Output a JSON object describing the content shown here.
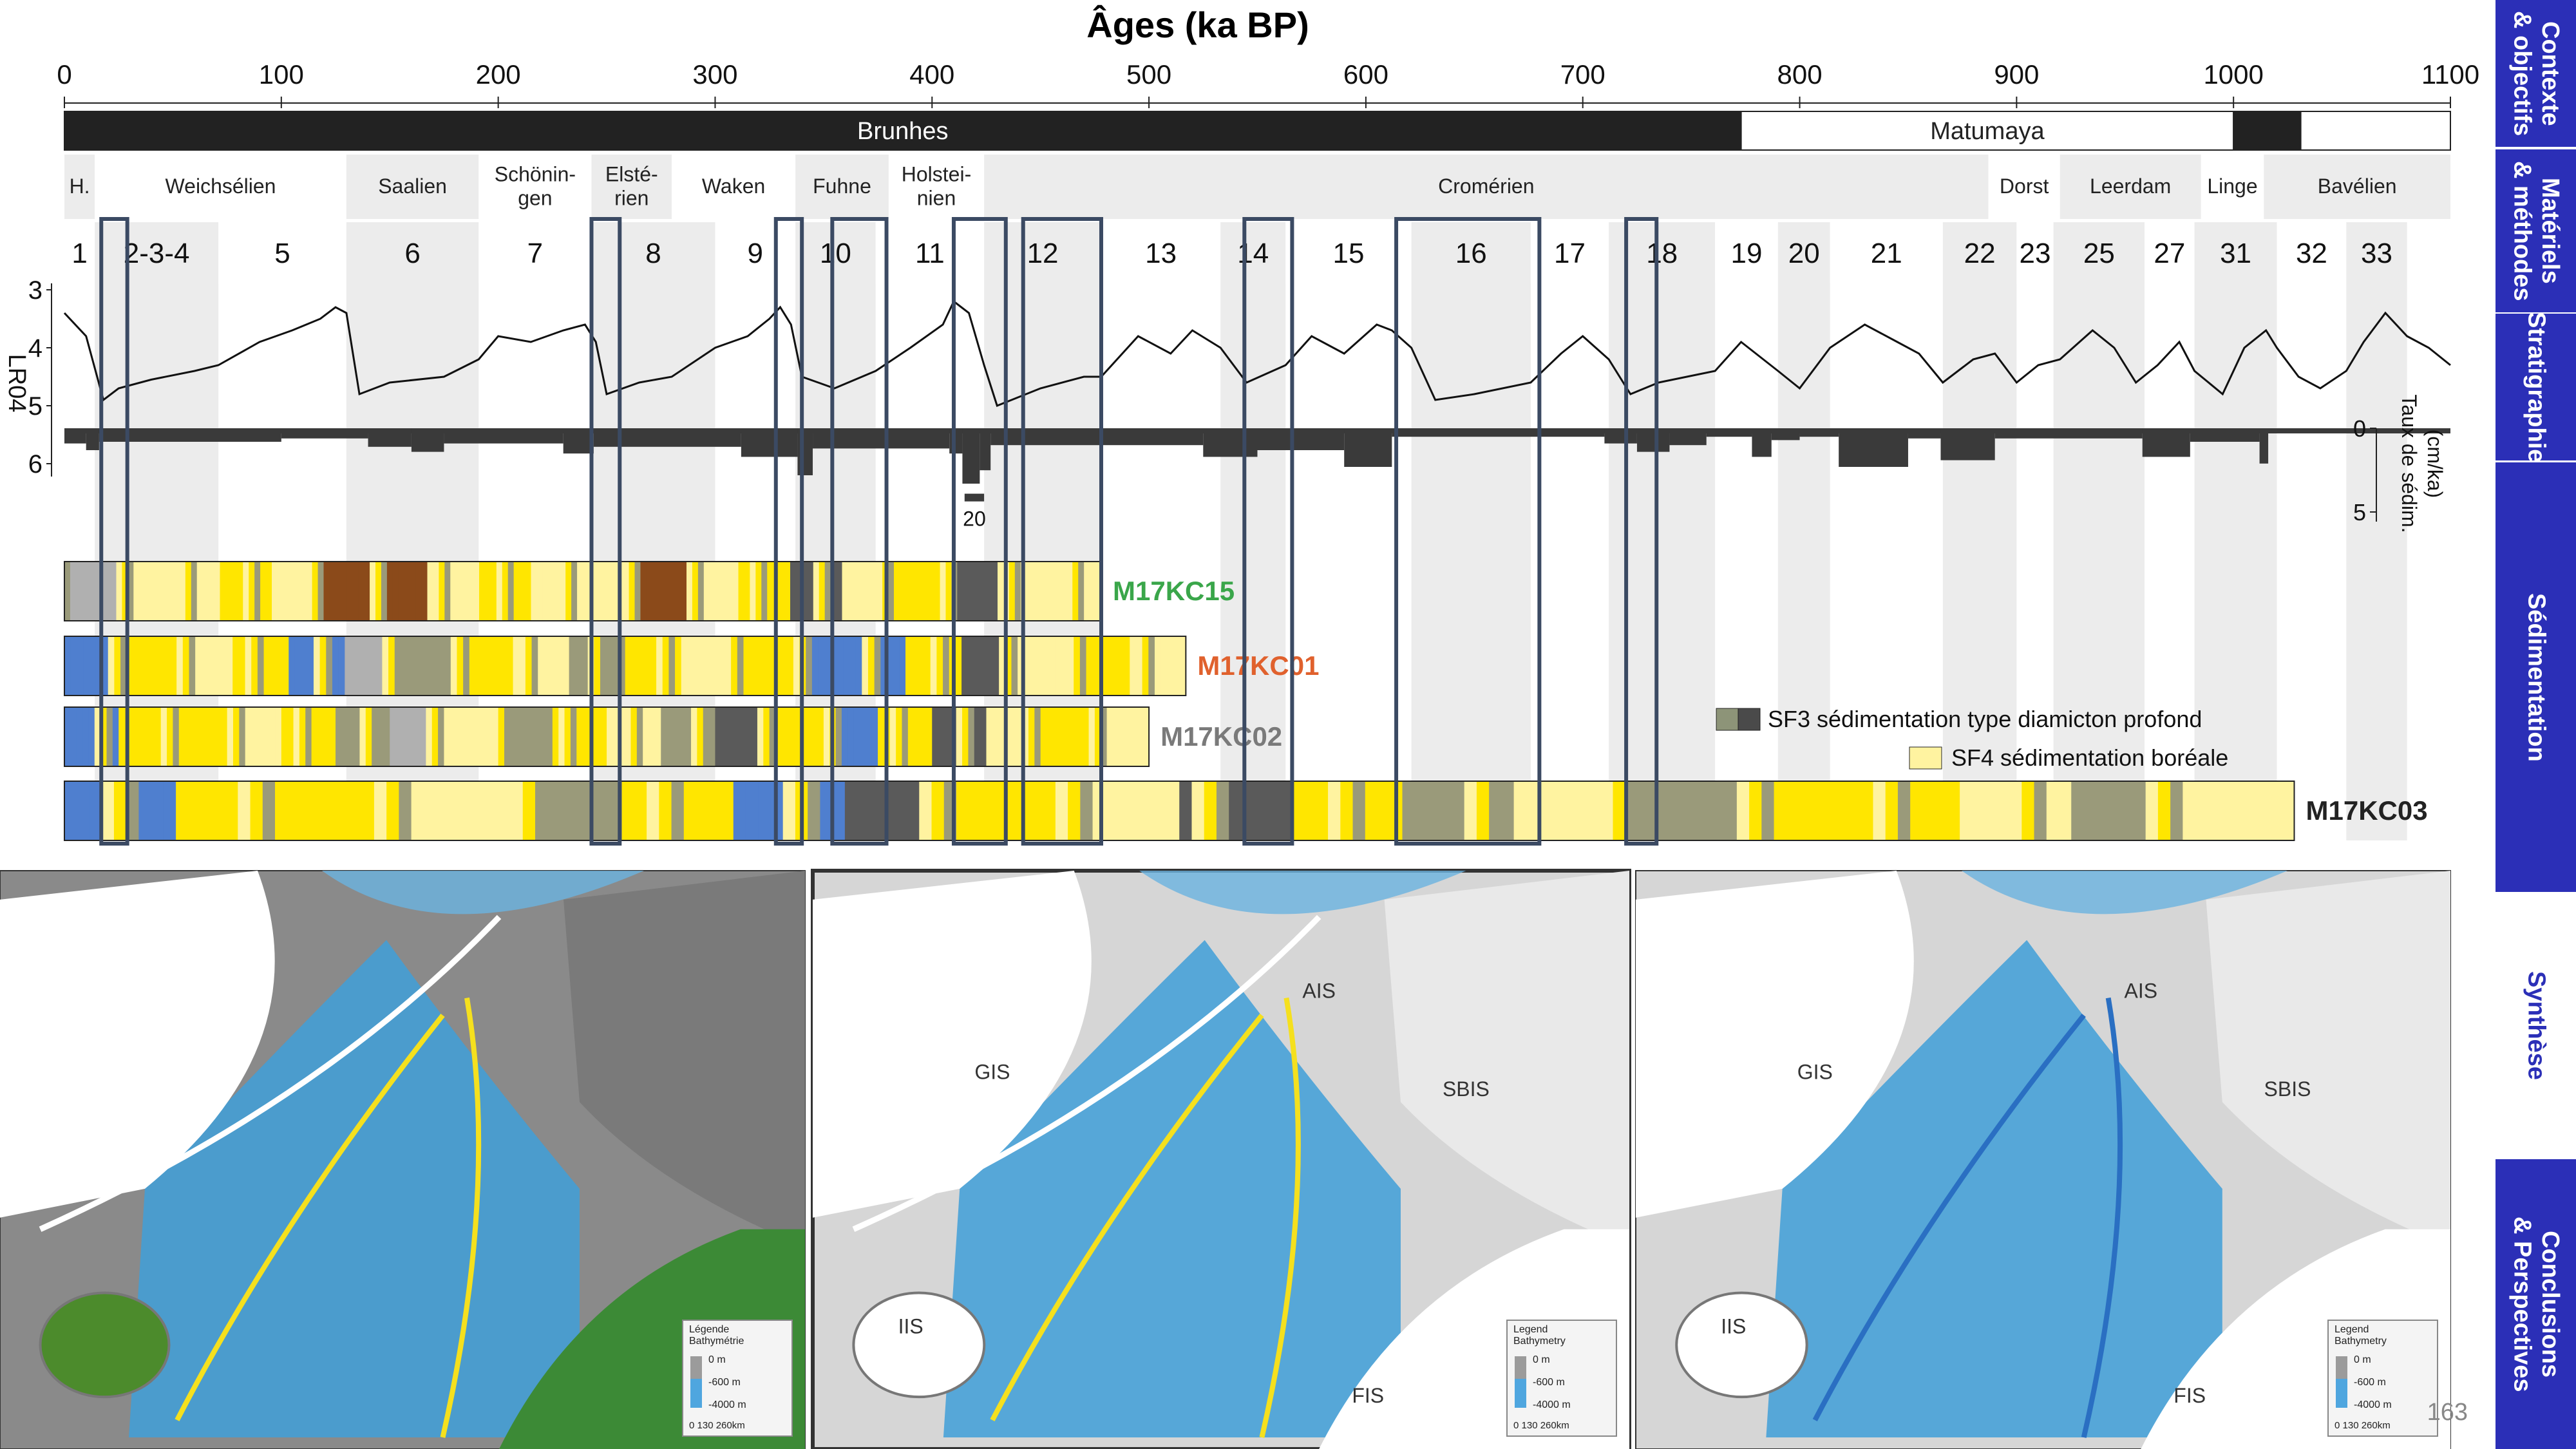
{
  "axis": {
    "title": "Âges (ka BP)",
    "min": 0,
    "max": 1100,
    "ticks": [
      0,
      100,
      200,
      300,
      400,
      500,
      600,
      700,
      800,
      900,
      1000,
      1100
    ]
  },
  "magnetostratigraphy": [
    {
      "label": "Brunhes",
      "from": 0,
      "to": 773,
      "fill": "#222222",
      "text_color": "#ffffff"
    },
    {
      "label": "Matumaya",
      "from": 773,
      "to": 1000,
      "fill": "#ffffff",
      "text_color": "#222222"
    },
    {
      "label": "",
      "from": 1000,
      "to": 1031,
      "fill": "#222222",
      "text_color": "#ffffff"
    },
    {
      "label": "",
      "from": 1031,
      "to": 1100,
      "fill": "#ffffff",
      "text_color": "#222222"
    }
  ],
  "stages": [
    {
      "label": "H.",
      "from": 0,
      "to": 14,
      "shade": true
    },
    {
      "label": "Weichsélien",
      "from": 14,
      "to": 130,
      "shade": false
    },
    {
      "label": "Saalien",
      "from": 130,
      "to": 191,
      "shade": true
    },
    {
      "label": "Schönin-\ngen",
      "from": 191,
      "to": 243,
      "shade": false
    },
    {
      "label": "Elsté-\nrien",
      "from": 243,
      "to": 280,
      "shade": true
    },
    {
      "label": "Waken",
      "from": 280,
      "to": 337,
      "shade": false
    },
    {
      "label": "Fuhne",
      "from": 337,
      "to": 380,
      "shade": true
    },
    {
      "label": "Holstei-\nnien",
      "from": 380,
      "to": 424,
      "shade": false
    },
    {
      "label": "Cromérien",
      "from": 424,
      "to": 887,
      "shade": true
    },
    {
      "label": "Dorst",
      "from": 887,
      "to": 920,
      "shade": false
    },
    {
      "label": "Leerdam",
      "from": 920,
      "to": 985,
      "shade": true
    },
    {
      "label": "Linge",
      "from": 985,
      "to": 1014,
      "shade": false
    },
    {
      "label": "Bavélien",
      "from": 1014,
      "to": 1100,
      "shade": true
    }
  ],
  "mis": [
    {
      "label": "1",
      "from": 0,
      "to": 14,
      "shade": false
    },
    {
      "label": "2-3-4",
      "from": 14,
      "to": 71,
      "shade": true
    },
    {
      "label": "5",
      "from": 71,
      "to": 130,
      "shade": false
    },
    {
      "label": "6",
      "from": 130,
      "to": 191,
      "shade": true
    },
    {
      "label": "7",
      "from": 191,
      "to": 243,
      "shade": false
    },
    {
      "label": "8",
      "from": 243,
      "to": 300,
      "shade": true
    },
    {
      "label": "9",
      "from": 300,
      "to": 337,
      "shade": false
    },
    {
      "label": "10",
      "from": 337,
      "to": 374,
      "shade": true
    },
    {
      "label": "11",
      "from": 374,
      "to": 424,
      "shade": false
    },
    {
      "label": "12",
      "from": 424,
      "to": 478,
      "shade": true
    },
    {
      "label": "13",
      "from": 478,
      "to": 533,
      "shade": false
    },
    {
      "label": "14",
      "from": 533,
      "to": 563,
      "shade": true
    },
    {
      "label": "15",
      "from": 563,
      "to": 621,
      "shade": false
    },
    {
      "label": "16",
      "from": 621,
      "to": 676,
      "shade": true
    },
    {
      "label": "17",
      "from": 676,
      "to": 712,
      "shade": false
    },
    {
      "label": "18",
      "from": 712,
      "to": 761,
      "shade": true
    },
    {
      "label": "19",
      "from": 761,
      "to": 790,
      "shade": false
    },
    {
      "label": "20",
      "from": 790,
      "to": 814,
      "shade": true
    },
    {
      "label": "21",
      "from": 814,
      "to": 866,
      "shade": false
    },
    {
      "label": "22",
      "from": 866,
      "to": 900,
      "shade": true
    },
    {
      "label": "23",
      "from": 900,
      "to": 917,
      "shade": false
    },
    {
      "label": "25",
      "from": 917,
      "to": 959,
      "shade": true
    },
    {
      "label": "27",
      "from": 959,
      "to": 982,
      "shade": false
    },
    {
      "label": "31",
      "from": 982,
      "to": 1020,
      "shade": true
    },
    {
      "label": "32",
      "from": 1020,
      "to": 1052,
      "shade": false
    },
    {
      "label": "33",
      "from": 1052,
      "to": 1080,
      "shade": true
    }
  ],
  "lr04": {
    "label": "LR04",
    "ylim": [
      3,
      6
    ],
    "ticks": [
      3,
      4,
      5,
      6
    ],
    "series": [
      [
        0,
        3.4
      ],
      [
        10,
        3.8
      ],
      [
        18,
        4.9
      ],
      [
        25,
        4.7
      ],
      [
        40,
        4.55
      ],
      [
        60,
        4.4
      ],
      [
        71,
        4.3
      ],
      [
        90,
        3.9
      ],
      [
        105,
        3.7
      ],
      [
        118,
        3.5
      ],
      [
        125,
        3.3
      ],
      [
        130,
        3.4
      ],
      [
        136,
        4.8
      ],
      [
        150,
        4.6
      ],
      [
        175,
        4.5
      ],
      [
        191,
        4.2
      ],
      [
        200,
        3.8
      ],
      [
        215,
        3.9
      ],
      [
        230,
        3.7
      ],
      [
        240,
        3.6
      ],
      [
        245,
        3.9
      ],
      [
        250,
        4.8
      ],
      [
        265,
        4.6
      ],
      [
        280,
        4.5
      ],
      [
        300,
        4.0
      ],
      [
        315,
        3.8
      ],
      [
        325,
        3.5
      ],
      [
        330,
        3.3
      ],
      [
        335,
        3.6
      ],
      [
        340,
        4.5
      ],
      [
        355,
        4.7
      ],
      [
        374,
        4.4
      ],
      [
        390,
        4.0
      ],
      [
        405,
        3.6
      ],
      [
        410,
        3.2
      ],
      [
        417,
        3.4
      ],
      [
        424,
        4.3
      ],
      [
        430,
        5.0
      ],
      [
        450,
        4.7
      ],
      [
        470,
        4.5
      ],
      [
        478,
        4.5
      ],
      [
        495,
        3.8
      ],
      [
        510,
        4.1
      ],
      [
        520,
        3.7
      ],
      [
        533,
        4.0
      ],
      [
        545,
        4.6
      ],
      [
        563,
        4.3
      ],
      [
        575,
        3.8
      ],
      [
        590,
        4.1
      ],
      [
        605,
        3.6
      ],
      [
        612,
        3.7
      ],
      [
        621,
        4.0
      ],
      [
        632,
        4.9
      ],
      [
        650,
        4.8
      ],
      [
        676,
        4.6
      ],
      [
        690,
        4.1
      ],
      [
        700,
        3.8
      ],
      [
        712,
        4.2
      ],
      [
        722,
        4.8
      ],
      [
        735,
        4.6
      ],
      [
        761,
        4.4
      ],
      [
        773,
        3.9
      ],
      [
        790,
        4.4
      ],
      [
        800,
        4.7
      ],
      [
        814,
        4.0
      ],
      [
        830,
        3.6
      ],
      [
        845,
        3.9
      ],
      [
        855,
        4.1
      ],
      [
        866,
        4.6
      ],
      [
        880,
        4.2
      ],
      [
        890,
        4.1
      ],
      [
        900,
        4.6
      ],
      [
        910,
        4.3
      ],
      [
        920,
        4.2
      ],
      [
        935,
        3.7
      ],
      [
        945,
        4.0
      ],
      [
        955,
        4.6
      ],
      [
        965,
        4.3
      ],
      [
        975,
        3.9
      ],
      [
        982,
        4.4
      ],
      [
        995,
        4.8
      ],
      [
        1005,
        4.0
      ],
      [
        1015,
        3.7
      ],
      [
        1020,
        4.0
      ],
      [
        1030,
        4.5
      ],
      [
        1040,
        4.7
      ],
      [
        1052,
        4.4
      ],
      [
        1060,
        3.9
      ],
      [
        1070,
        3.4
      ],
      [
        1080,
        3.8
      ],
      [
        1090,
        4.0
      ],
      [
        1100,
        4.3
      ]
    ]
  },
  "sed_rate": {
    "title": "Taux de sédim.\n(cm/ka)",
    "ticks": [
      0,
      5
    ],
    "break_label": "20",
    "bars": [
      {
        "from": 0,
        "to": 10,
        "value": 0.6
      },
      {
        "from": 10,
        "to": 16,
        "value": 1.0
      },
      {
        "from": 16,
        "to": 100,
        "value": 0.5
      },
      {
        "from": 100,
        "to": 140,
        "value": 0.3
      },
      {
        "from": 140,
        "to": 160,
        "value": 0.8
      },
      {
        "from": 160,
        "to": 175,
        "value": 1.1
      },
      {
        "from": 175,
        "to": 230,
        "value": 0.6
      },
      {
        "from": 230,
        "to": 244,
        "value": 1.2
      },
      {
        "from": 244,
        "to": 312,
        "value": 0.8
      },
      {
        "from": 312,
        "to": 338,
        "value": 1.4
      },
      {
        "from": 338,
        "to": 345,
        "value": 2.5
      },
      {
        "from": 345,
        "to": 408,
        "value": 0.9
      },
      {
        "from": 408,
        "to": 414,
        "value": 1.2
      },
      {
        "from": 414,
        "to": 422,
        "value": 3.0
      },
      {
        "from": 422,
        "to": 427,
        "value": 2.2
      },
      {
        "from": 427,
        "to": 525,
        "value": 0.7
      },
      {
        "from": 525,
        "to": 550,
        "value": 1.4
      },
      {
        "from": 550,
        "to": 590,
        "value": 1.0
      },
      {
        "from": 590,
        "to": 612,
        "value": 2.0
      },
      {
        "from": 612,
        "to": 710,
        "value": 0.2
      },
      {
        "from": 710,
        "to": 725,
        "value": 0.6
      },
      {
        "from": 725,
        "to": 740,
        "value": 1.1
      },
      {
        "from": 740,
        "to": 757,
        "value": 0.7
      },
      {
        "from": 757,
        "to": 778,
        "value": 0.2
      },
      {
        "from": 778,
        "to": 787,
        "value": 1.4
      },
      {
        "from": 787,
        "to": 800,
        "value": 0.4
      },
      {
        "from": 800,
        "to": 818,
        "value": 0.2
      },
      {
        "from": 818,
        "to": 850,
        "value": 2.0
      },
      {
        "from": 850,
        "to": 865,
        "value": 0.3
      },
      {
        "from": 865,
        "to": 890,
        "value": 1.6
      },
      {
        "from": 890,
        "to": 958,
        "value": 0.3
      },
      {
        "from": 958,
        "to": 980,
        "value": 1.4
      },
      {
        "from": 980,
        "to": 1012,
        "value": 0.5
      },
      {
        "from": 1012,
        "to": 1016,
        "value": 1.8
      }
    ]
  },
  "cores": [
    {
      "name": "M17KC15",
      "name_color": "#3aa64a",
      "length": 478,
      "colors": [
        "#b0b0b0",
        "#fff3a0",
        "#fff3a0",
        "#ffe600",
        "#fff3a0",
        "#8b4a1a",
        "#8b4a1a",
        "#fff3a0",
        "#ffe600",
        "#fff3a0",
        "#fff3a0",
        "#8b4a1a",
        "#fff3a0",
        "#ffe600",
        "#5a5a5a",
        "#fff3a0",
        "#ffe600",
        "#5a5a5a",
        "#fff3a0",
        "#fff3a0"
      ]
    },
    {
      "name": "M17KC01",
      "name_color": "#e0612d",
      "length": 517,
      "colors": [
        "#4f7fcf",
        "#ffe600",
        "#fff3a0",
        "#ffe600",
        "#4f7fcf",
        "#b0b0b0",
        "#9a9a7a",
        "#ffe600",
        "#fff3a0",
        "#9a9a7a",
        "#ffe600",
        "#fff3a0",
        "#ffe600",
        "#4f7fcf",
        "#4f7fcf",
        "#ffe600",
        "#5a5a5a",
        "#fff3a0",
        "#ffe600",
        "#fff3a0"
      ]
    },
    {
      "name": "M17KC02",
      "name_color": "#7a7a7a",
      "length": 500,
      "colors": [
        "#4f7fcf",
        "#ffe600",
        "#ffe600",
        "#fff3a0",
        "#ffe600",
        "#9a9a7a",
        "#b0b0b0",
        "#fff3a0",
        "#9a9a7a",
        "#ffe600",
        "#fff3a0",
        "#9a9a7a",
        "#5a5a5a",
        "#ffe600",
        "#4f7fcf",
        "#ffe600",
        "#5a5a5a",
        "#fff3a0",
        "#ffe600",
        "#fff3a0"
      ]
    },
    {
      "name": "M17KC03",
      "name_color": "#222222",
      "length": 1028,
      "colors": [
        "#4f7fcf",
        "#ffe600",
        "#ffe600",
        "#fff3a0",
        "#9a9a7a",
        "#ffe600",
        "#4f7fcf",
        "#5a5a5a",
        "#ffe600",
        "#fff3a0",
        "#5a5a5a",
        "#ffe600",
        "#9a9a7a",
        "#fff3a0",
        "#9a9a7a",
        "#ffe600",
        "#ffe600",
        "#fff3a0",
        "#9a9a7a",
        "#fff3a0"
      ]
    }
  ],
  "legend": [
    {
      "label": "SF3 sédimentation type diamicton profond",
      "colors": [
        "#8d9478",
        "#4a4a4a"
      ]
    },
    {
      "label": "SF4 sédimentation boréale",
      "colors": [
        "#fff3a0"
      ]
    }
  ],
  "highlight_windows": [
    [
      17,
      29
    ],
    [
      243,
      256
    ],
    [
      328,
      340
    ],
    [
      354,
      379
    ],
    [
      410,
      434
    ],
    [
      442,
      478
    ],
    [
      544,
      566
    ],
    [
      614,
      680
    ],
    [
      720,
      734
    ]
  ],
  "maps": [
    {
      "labels": [],
      "legend_title": "Légende\nBathymétrie",
      "legend_items": [
        "0 m",
        "-600 m",
        "-4000 m"
      ],
      "scale": "0   130  260km"
    },
    {
      "labels": [
        "AIS",
        "GIS",
        "SBIS",
        "IIS",
        "FIS"
      ],
      "legend_title": "Legend\nBathymetry",
      "legend_items": [
        "0 m",
        "-600 m",
        "-4000 m"
      ],
      "scale": "0   130  260km"
    },
    {
      "labels": [
        "AIS",
        "GIS",
        "SBIS",
        "IIS",
        "FIS"
      ],
      "legend_title": "Legend\nBathymetry",
      "legend_items": [
        "0 m",
        "-600 m",
        "-4000 m"
      ],
      "scale": "0   130  260km"
    }
  ],
  "page_number": "163",
  "nav": [
    {
      "label": "Contexte\n& objectifs",
      "active": true
    },
    {
      "label": "Matériels\n& méthodes",
      "active": true
    },
    {
      "label": "Stratigraphie",
      "active": true
    },
    {
      "label": "Sédimentation",
      "active": true
    },
    {
      "label": "Synthèse",
      "active": false
    },
    {
      "label": "Conclusions\n& Perspectives",
      "active": true
    }
  ]
}
